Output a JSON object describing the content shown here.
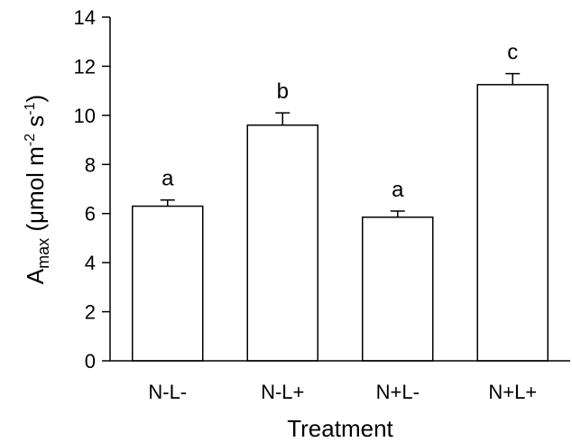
{
  "chart_data": {
    "type": "bar",
    "title": "",
    "xlabel": "Treatment",
    "ylabel": {
      "main": "A",
      "sub": "max",
      "open": " (",
      "mu": "μ",
      "mol": "mol m",
      "sup1": "-2",
      "s": " s",
      "sup2": "-1",
      "close": ")"
    },
    "ylim": [
      0,
      14
    ],
    "yticks": [
      "0",
      "2",
      "4",
      "6",
      "8",
      "10",
      "12",
      "14"
    ],
    "grid": false,
    "categories": [
      "N-L-",
      "N-L+",
      "N+L-",
      "N+L+"
    ],
    "values": [
      6.3,
      9.6,
      5.85,
      11.25
    ],
    "errors": [
      0.25,
      0.5,
      0.25,
      0.45
    ],
    "significance": [
      "a",
      "b",
      "a",
      "c"
    ],
    "bar_color": "#ffffff",
    "edge_color": "#000000"
  }
}
